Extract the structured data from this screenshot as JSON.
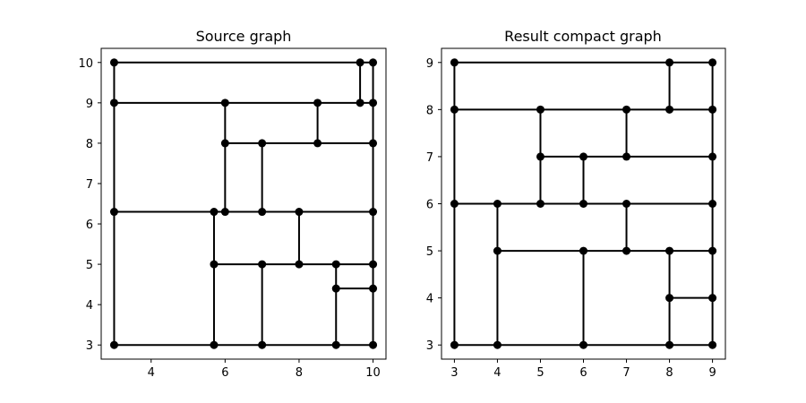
{
  "chart_data": [
    {
      "type": "graph",
      "title": "Source graph",
      "xlim": [
        2.65,
        10.35
      ],
      "ylim": [
        2.65,
        10.35
      ],
      "xticks": [
        4,
        6,
        8,
        10
      ],
      "yticks": [
        3,
        4,
        5,
        6,
        7,
        8,
        9,
        10
      ],
      "grid": false,
      "nodes": [
        [
          3,
          10
        ],
        [
          9.65,
          10
        ],
        [
          10,
          10
        ],
        [
          3,
          9
        ],
        [
          6,
          9
        ],
        [
          8.5,
          9
        ],
        [
          9.65,
          9
        ],
        [
          10,
          9
        ],
        [
          6,
          8
        ],
        [
          7,
          8
        ],
        [
          8.5,
          8
        ],
        [
          10,
          8
        ],
        [
          3,
          6.3
        ],
        [
          5.7,
          6.3
        ],
        [
          6,
          6.3
        ],
        [
          7,
          6.3
        ],
        [
          8,
          6.3
        ],
        [
          10,
          6.3
        ],
        [
          5.7,
          5
        ],
        [
          7,
          5
        ],
        [
          8,
          5
        ],
        [
          9,
          5
        ],
        [
          10,
          5
        ],
        [
          9,
          4.4
        ],
        [
          10,
          4.4
        ],
        [
          3,
          3
        ],
        [
          5.7,
          3
        ],
        [
          7,
          3
        ],
        [
          9,
          3
        ],
        [
          10,
          3
        ]
      ],
      "edges": [
        [
          [
            3,
            10
          ],
          [
            10,
            10
          ]
        ],
        [
          [
            3,
            9
          ],
          [
            10,
            9
          ]
        ],
        [
          [
            6,
            8
          ],
          [
            10,
            8
          ]
        ],
        [
          [
            3,
            6.3
          ],
          [
            10,
            6.3
          ]
        ],
        [
          [
            5.7,
            5
          ],
          [
            10,
            5
          ]
        ],
        [
          [
            9,
            4.4
          ],
          [
            10,
            4.4
          ]
        ],
        [
          [
            3,
            3
          ],
          [
            10,
            3
          ]
        ],
        [
          [
            3,
            3
          ],
          [
            3,
            10
          ]
        ],
        [
          [
            5.7,
            3
          ],
          [
            5.7,
            6.3
          ]
        ],
        [
          [
            6,
            6.3
          ],
          [
            6,
            9
          ]
        ],
        [
          [
            7,
            3
          ],
          [
            7,
            5
          ]
        ],
        [
          [
            7,
            6.3
          ],
          [
            7,
            8
          ]
        ],
        [
          [
            8,
            5
          ],
          [
            8,
            6.3
          ]
        ],
        [
          [
            8.5,
            8
          ],
          [
            8.5,
            9
          ]
        ],
        [
          [
            9,
            3
          ],
          [
            9,
            5
          ]
        ],
        [
          [
            9.65,
            9
          ],
          [
            9.65,
            10
          ]
        ],
        [
          [
            10,
            3
          ],
          [
            10,
            10
          ]
        ]
      ]
    },
    {
      "type": "graph",
      "title": "Result compact graph",
      "xlim": [
        2.7,
        9.3
      ],
      "ylim": [
        2.7,
        9.3
      ],
      "xticks": [
        3,
        4,
        5,
        6,
        7,
        8,
        9
      ],
      "yticks": [
        3,
        4,
        5,
        6,
        7,
        8,
        9
      ],
      "grid": false,
      "nodes": [
        [
          3,
          9
        ],
        [
          8,
          9
        ],
        [
          9,
          9
        ],
        [
          3,
          8
        ],
        [
          5,
          8
        ],
        [
          7,
          8
        ],
        [
          8,
          8
        ],
        [
          9,
          8
        ],
        [
          5,
          7
        ],
        [
          6,
          7
        ],
        [
          7,
          7
        ],
        [
          9,
          7
        ],
        [
          3,
          6
        ],
        [
          4,
          6
        ],
        [
          5,
          6
        ],
        [
          6,
          6
        ],
        [
          7,
          6
        ],
        [
          9,
          6
        ],
        [
          4,
          5
        ],
        [
          6,
          5
        ],
        [
          7,
          5
        ],
        [
          8,
          5
        ],
        [
          9,
          5
        ],
        [
          8,
          4
        ],
        [
          9,
          4
        ],
        [
          3,
          3
        ],
        [
          4,
          3
        ],
        [
          6,
          3
        ],
        [
          8,
          3
        ],
        [
          9,
          3
        ]
      ],
      "edges": [
        [
          [
            3,
            9
          ],
          [
            9,
            9
          ]
        ],
        [
          [
            3,
            8
          ],
          [
            9,
            8
          ]
        ],
        [
          [
            5,
            7
          ],
          [
            9,
            7
          ]
        ],
        [
          [
            3,
            6
          ],
          [
            9,
            6
          ]
        ],
        [
          [
            4,
            5
          ],
          [
            9,
            5
          ]
        ],
        [
          [
            8,
            4
          ],
          [
            9,
            4
          ]
        ],
        [
          [
            3,
            3
          ],
          [
            9,
            3
          ]
        ],
        [
          [
            3,
            3
          ],
          [
            3,
            9
          ]
        ],
        [
          [
            4,
            3
          ],
          [
            4,
            6
          ]
        ],
        [
          [
            5,
            6
          ],
          [
            5,
            8
          ]
        ],
        [
          [
            6,
            3
          ],
          [
            6,
            5
          ]
        ],
        [
          [
            6,
            6
          ],
          [
            6,
            7
          ]
        ],
        [
          [
            7,
            5
          ],
          [
            7,
            6
          ]
        ],
        [
          [
            7,
            7
          ],
          [
            7,
            8
          ]
        ],
        [
          [
            8,
            3
          ],
          [
            8,
            5
          ]
        ],
        [
          [
            8,
            8
          ],
          [
            8,
            9
          ]
        ],
        [
          [
            9,
            3
          ],
          [
            9,
            9
          ]
        ]
      ]
    }
  ]
}
